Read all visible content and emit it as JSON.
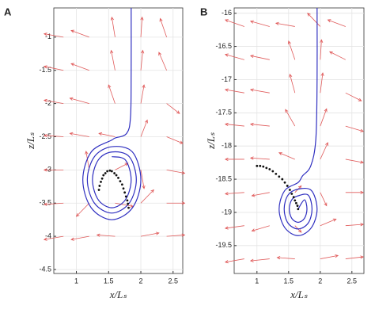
{
  "chart_data": [
    {
      "type": "quiver",
      "label": "A",
      "xlabel": "x/Lₛ",
      "ylabel": "z/Lₛ",
      "xlim": [
        0.65,
        2.65
      ],
      "ylim": [
        -4.56,
        -0.56
      ],
      "xticks": [
        1,
        1.5,
        2,
        2.5
      ],
      "yticks": [
        -1,
        -1.5,
        -2,
        -2.5,
        -3,
        -3.5,
        -4,
        -4.5
      ],
      "grid": true,
      "vector_color": "#e05a5a",
      "vectors": [
        [
          0.8,
          -1,
          -0.3,
          0.05
        ],
        [
          1.2,
          -1,
          -0.28,
          0.1
        ],
        [
          1.6,
          -1,
          -0.05,
          0.3
        ],
        [
          2.0,
          -1,
          0.02,
          0.3
        ],
        [
          2.4,
          -1,
          -0.1,
          0.28
        ],
        [
          0.8,
          -1.5,
          -0.3,
          0.06
        ],
        [
          1.2,
          -1.5,
          -0.28,
          0.1
        ],
        [
          1.6,
          -1.5,
          -0.06,
          0.3
        ],
        [
          2.0,
          -1.5,
          0.03,
          0.3
        ],
        [
          2.4,
          -1.5,
          -0.12,
          0.27
        ],
        [
          0.8,
          -2,
          -0.3,
          0.05
        ],
        [
          1.2,
          -2,
          -0.3,
          0.08
        ],
        [
          1.6,
          -2,
          -0.1,
          0.28
        ],
        [
          2.0,
          -2,
          0.05,
          0.28
        ],
        [
          2.4,
          -2,
          0.2,
          -0.15
        ],
        [
          0.8,
          -2.5,
          -0.3,
          0.02
        ],
        [
          1.2,
          -2.5,
          -0.3,
          0.05
        ],
        [
          1.6,
          -2.5,
          -0.25,
          0.05
        ],
        [
          2.0,
          -2.5,
          0.1,
          0.25
        ],
        [
          2.4,
          -2.5,
          0.25,
          -0.1
        ],
        [
          0.8,
          -3,
          -0.3,
          0.0
        ],
        [
          1.2,
          -3,
          -0.05,
          0.28
        ],
        [
          1.6,
          -3,
          0.2,
          0.1
        ],
        [
          2.0,
          -3,
          0.05,
          -0.28
        ],
        [
          2.4,
          -3,
          0.28,
          -0.05
        ],
        [
          0.8,
          -3.5,
          -0.3,
          -0.02
        ],
        [
          1.2,
          -3.5,
          -0.2,
          -0.2
        ],
        [
          1.6,
          -3.5,
          0.28,
          -0.05
        ],
        [
          2.0,
          -3.5,
          0.2,
          0.2
        ],
        [
          2.4,
          -3.5,
          0.28,
          0.0
        ],
        [
          0.8,
          -4,
          -0.3,
          -0.05
        ],
        [
          1.2,
          -4,
          -0.28,
          -0.05
        ],
        [
          1.6,
          -4,
          -0.28,
          0.02
        ],
        [
          2.0,
          -4,
          0.28,
          0.05
        ],
        [
          2.4,
          -4,
          0.28,
          0.02
        ]
      ],
      "trajectory": {
        "color": "#2f2fc0",
        "x": [
          1.85,
          1.85,
          1.84,
          1.78,
          1.6,
          1.55,
          1.23,
          1.1,
          1.23,
          1.55,
          1.87,
          2.0,
          1.87,
          1.55,
          1.28,
          1.17,
          1.28,
          1.55,
          1.82,
          1.93,
          1.82,
          1.55,
          1.34,
          1.25,
          1.34,
          1.55,
          1.76,
          1.85,
          1.76,
          1.55
        ],
        "y": [
          -0.56,
          -1.5,
          -2.2,
          -2.45,
          -2.52,
          -2.55,
          -2.73,
          -3.15,
          -3.57,
          -3.75,
          -3.57,
          -3.15,
          -2.73,
          -2.65,
          -2.8,
          -3.15,
          -3.5,
          -3.65,
          -3.5,
          -3.15,
          -2.8,
          -2.73,
          -2.85,
          -3.15,
          -3.45,
          -3.57,
          -3.45,
          -3.15,
          -2.85,
          -2.8
        ]
      },
      "dots": {
        "color": "#111111",
        "x": [
          1.35,
          1.36,
          1.38,
          1.4,
          1.42,
          1.45,
          1.48,
          1.52,
          1.55,
          1.59,
          1.62,
          1.65,
          1.68,
          1.71,
          1.73,
          1.75,
          1.77,
          1.79,
          1.8,
          1.81
        ],
        "y": [
          -3.3,
          -3.24,
          -3.18,
          -3.13,
          -3.08,
          -3.05,
          -3.02,
          -3.01,
          -3.02,
          -3.05,
          -3.08,
          -3.12,
          -3.17,
          -3.22,
          -3.28,
          -3.34,
          -3.4,
          -3.46,
          -3.51,
          -3.57
        ]
      }
    },
    {
      "type": "quiver",
      "label": "B",
      "xlabel": "x/Lₛ",
      "ylabel": "z/Lₛ",
      "xlim": [
        0.64,
        2.69
      ],
      "ylim": [
        -19.92,
        -15.92
      ],
      "xticks": [
        1,
        1.5,
        2,
        2.5
      ],
      "yticks": [
        -16,
        -16.5,
        -17,
        -17.5,
        -18,
        -18.5,
        -19,
        -19.5
      ],
      "grid": true,
      "vector_color": "#e05a5a",
      "vectors": [
        [
          0.8,
          -16.2,
          -0.3,
          0.1
        ],
        [
          1.2,
          -16.2,
          -0.3,
          0.08
        ],
        [
          1.6,
          -16.2,
          -0.3,
          0.05
        ],
        [
          2.0,
          -16.2,
          -0.2,
          0.2
        ],
        [
          2.4,
          -16.2,
          -0.28,
          0.1
        ],
        [
          0.8,
          -16.7,
          -0.3,
          0.08
        ],
        [
          1.2,
          -16.7,
          -0.3,
          0.06
        ],
        [
          1.6,
          -16.7,
          -0.1,
          0.28
        ],
        [
          2.0,
          -16.7,
          0.02,
          0.3
        ],
        [
          2.4,
          -16.7,
          -0.25,
          0.12
        ],
        [
          0.8,
          -17.2,
          -0.3,
          0.05
        ],
        [
          1.2,
          -17.2,
          -0.3,
          0.05
        ],
        [
          1.6,
          -17.2,
          -0.08,
          0.28
        ],
        [
          2.0,
          -17.2,
          0.04,
          0.3
        ],
        [
          2.4,
          -17.2,
          0.25,
          -0.12
        ],
        [
          0.8,
          -17.7,
          -0.3,
          0.03
        ],
        [
          1.2,
          -17.7,
          -0.3,
          0.03
        ],
        [
          1.6,
          -17.7,
          -0.15,
          0.25
        ],
        [
          2.0,
          -17.7,
          0.1,
          0.26
        ],
        [
          2.4,
          -17.7,
          0.28,
          -0.08
        ],
        [
          0.8,
          -18.2,
          -0.3,
          0.0
        ],
        [
          1.2,
          -18.2,
          -0.3,
          0.02
        ],
        [
          1.6,
          -18.2,
          -0.25,
          0.1
        ],
        [
          2.0,
          -18.2,
          0.12,
          0.25
        ],
        [
          2.4,
          -18.2,
          0.28,
          -0.05
        ],
        [
          0.8,
          -18.7,
          -0.3,
          -0.02
        ],
        [
          1.2,
          -18.7,
          -0.28,
          -0.05
        ],
        [
          1.6,
          -18.7,
          0.1,
          0.1
        ],
        [
          2.0,
          -18.7,
          0.1,
          -0.2
        ],
        [
          2.4,
          -18.7,
          0.28,
          0.0
        ],
        [
          0.8,
          -19.2,
          -0.3,
          -0.04
        ],
        [
          1.2,
          -19.2,
          -0.28,
          -0.08
        ],
        [
          1.6,
          -19.2,
          0.1,
          -0.1
        ],
        [
          2.0,
          -19.2,
          0.25,
          0.1
        ],
        [
          2.4,
          -19.2,
          0.28,
          0.02
        ],
        [
          0.8,
          -19.7,
          -0.3,
          -0.05
        ],
        [
          1.2,
          -19.7,
          -0.3,
          -0.03
        ],
        [
          1.6,
          -19.7,
          -0.28,
          0.02
        ],
        [
          2.0,
          -19.7,
          0.28,
          0.05
        ],
        [
          2.4,
          -19.7,
          0.28,
          0.03
        ]
      ],
      "trajectory": {
        "color": "#2f2fc0",
        "x": [
          1.95,
          1.95,
          1.93,
          1.85,
          1.72,
          1.65,
          1.44,
          1.35,
          1.44,
          1.65,
          1.86,
          1.95,
          1.86,
          1.65,
          1.49,
          1.43,
          1.49,
          1.65,
          1.81,
          1.87,
          1.81,
          1.65,
          1.55,
          1.51,
          1.55,
          1.65,
          1.75,
          1.79,
          1.75,
          1.65
        ],
        "y": [
          -15.92,
          -17,
          -17.9,
          -18.3,
          -18.45,
          -18.55,
          -18.67,
          -18.95,
          -19.23,
          -19.35,
          -19.23,
          -18.95,
          -18.67,
          -18.65,
          -18.74,
          -18.95,
          -19.16,
          -19.25,
          -19.16,
          -18.95,
          -18.74,
          -18.75,
          -18.81,
          -18.95,
          -19.09,
          -19.15,
          -19.09,
          -18.95,
          -18.81,
          -18.95
        ]
      },
      "dots": {
        "color": "#111111",
        "x": [
          1.0,
          1.05,
          1.1,
          1.15,
          1.2,
          1.25,
          1.3,
          1.35,
          1.4,
          1.44,
          1.48,
          1.52,
          1.55,
          1.58,
          1.6,
          1.62,
          1.64,
          1.65
        ],
        "y": [
          -18.3,
          -18.3,
          -18.31,
          -18.33,
          -18.35,
          -18.38,
          -18.42,
          -18.46,
          -18.5,
          -18.55,
          -18.6,
          -18.66,
          -18.72,
          -18.77,
          -18.82,
          -18.86,
          -18.9,
          -18.95
        ]
      }
    }
  ]
}
